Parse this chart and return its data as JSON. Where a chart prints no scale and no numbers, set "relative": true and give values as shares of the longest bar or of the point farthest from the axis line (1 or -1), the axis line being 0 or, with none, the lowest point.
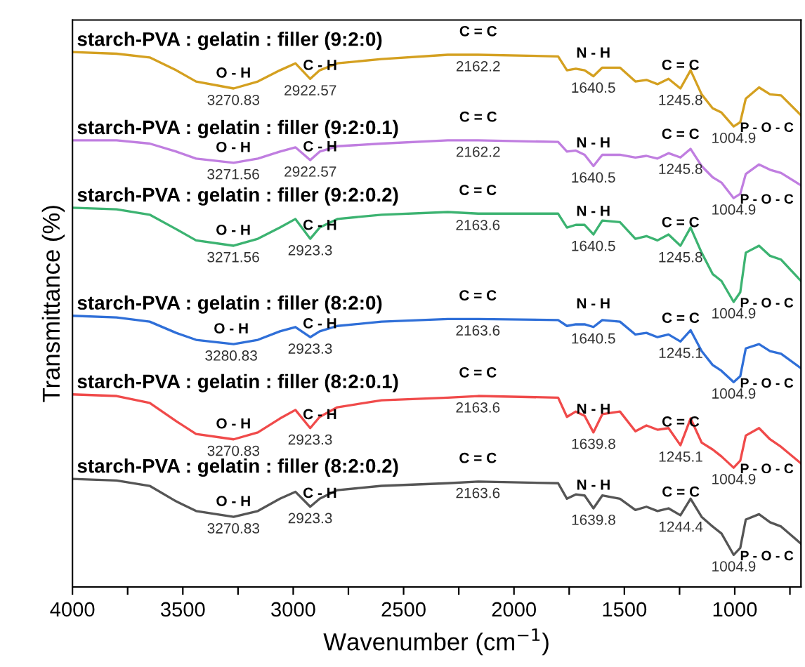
{
  "chart_data": {
    "type": "line",
    "relative": true,
    "xlabel": "Wavenumber (cm$^{−1}$)",
    "ylabel": "Transmittance (%)",
    "xlim": [
      4000,
      700
    ],
    "xticks": [
      4000,
      {
        "value": 3750,
        "label": null
      },
      3500,
      {
        "value": 3250,
        "label": null
      },
      3000,
      {
        "value": 2750,
        "label": null
      },
      2500,
      {
        "value": 2250,
        "label": null
      },
      2000,
      {
        "value": 1750,
        "label": null
      },
      1500,
      {
        "value": 1250,
        "label": null
      },
      1000,
      {
        "value": 750,
        "label": null
      }
    ],
    "x": [
      4000,
      3800,
      3650,
      3530,
      3440,
      3270,
      3160,
      3060,
      2990,
      2923,
      2880,
      2800,
      2600,
      2300,
      2162,
      1800,
      1760,
      1720,
      1680,
      1640,
      1600,
      1520,
      1450,
      1400,
      1350,
      1300,
      1246,
      1200,
      1150,
      1100,
      1060,
      1005,
      975,
      950,
      890,
      840,
      790,
      700
    ],
    "grid": false,
    "legend": false,
    "marker": "none",
    "line_style": "solid",
    "series": [
      {
        "name": "starch-PVA : gelatin : filler (9:2:0)",
        "color": "#d4a020",
        "values": [
          1.0,
          0.997,
          0.99,
          0.966,
          0.945,
          0.932,
          0.945,
          0.966,
          0.979,
          0.95,
          0.966,
          0.979,
          0.987,
          0.995,
          0.995,
          0.992,
          0.966,
          0.969,
          0.966,
          0.955,
          0.971,
          0.971,
          0.945,
          0.948,
          0.94,
          0.95,
          0.932,
          0.966,
          0.921,
          0.895,
          0.887,
          0.861,
          0.869,
          0.913,
          0.934,
          0.921,
          0.919,
          0.882
        ]
      },
      {
        "name": "starch-PVA : gelatin : filler (9:2:0.1)",
        "color": "#c07ee0",
        "values": [
          0.835,
          0.835,
          0.829,
          0.814,
          0.801,
          0.793,
          0.801,
          0.814,
          0.822,
          0.798,
          0.814,
          0.824,
          0.829,
          0.835,
          0.835,
          0.832,
          0.814,
          0.816,
          0.808,
          0.787,
          0.808,
          0.808,
          0.803,
          0.806,
          0.801,
          0.811,
          0.803,
          0.819,
          0.787,
          0.766,
          0.756,
          0.727,
          0.735,
          0.772,
          0.79,
          0.78,
          0.774,
          0.751
        ]
      },
      {
        "name": "starch-PVA : gelatin : filler (9:2:0.2)",
        "color": "#3cb371",
        "values": [
          0.709,
          0.706,
          0.696,
          0.669,
          0.648,
          0.638,
          0.651,
          0.672,
          0.688,
          0.651,
          0.672,
          0.688,
          0.696,
          0.701,
          0.698,
          0.698,
          0.672,
          0.677,
          0.677,
          0.659,
          0.685,
          0.682,
          0.651,
          0.656,
          0.648,
          0.659,
          0.638,
          0.672,
          0.625,
          0.585,
          0.572,
          0.533,
          0.551,
          0.625,
          0.638,
          0.619,
          0.612,
          0.572
        ]
      },
      {
        "name": "starch-PVA : gelatin : filler (8:2:0)",
        "color": "#2f6fd8",
        "values": [
          0.507,
          0.504,
          0.496,
          0.475,
          0.462,
          0.454,
          0.462,
          0.478,
          0.486,
          0.467,
          0.478,
          0.488,
          0.496,
          0.501,
          0.501,
          0.499,
          0.488,
          0.491,
          0.491,
          0.486,
          0.499,
          0.496,
          0.472,
          0.475,
          0.467,
          0.472,
          0.459,
          0.48,
          0.441,
          0.415,
          0.404,
          0.383,
          0.394,
          0.446,
          0.454,
          0.441,
          0.436,
          0.409
        ]
      },
      {
        "name": "starch-PVA : gelatin : filler (8:2:0.1)",
        "color": "#f04a4a",
        "values": [
          0.36,
          0.357,
          0.344,
          0.31,
          0.286,
          0.276,
          0.289,
          0.315,
          0.331,
          0.297,
          0.318,
          0.336,
          0.349,
          0.354,
          0.357,
          0.354,
          0.318,
          0.328,
          0.32,
          0.289,
          0.323,
          0.328,
          0.291,
          0.302,
          0.294,
          0.297,
          0.265,
          0.315,
          0.27,
          0.257,
          0.244,
          0.223,
          0.236,
          0.283,
          0.297,
          0.276,
          0.262,
          0.231
        ]
      },
      {
        "name": "starch-PVA : gelatin : filler (8:2:0.2)",
        "color": "#555555",
        "values": [
          0.202,
          0.199,
          0.189,
          0.16,
          0.142,
          0.131,
          0.142,
          0.165,
          0.178,
          0.15,
          0.165,
          0.181,
          0.189,
          0.194,
          0.197,
          0.194,
          0.165,
          0.173,
          0.171,
          0.147,
          0.171,
          0.165,
          0.144,
          0.15,
          0.142,
          0.147,
          0.134,
          0.165,
          0.131,
          0.113,
          0.1,
          0.06,
          0.073,
          0.126,
          0.136,
          0.121,
          0.113,
          0.081
        ]
      }
    ],
    "annotations": [
      {
        "text": "O - H",
        "x": 3270.83,
        "y": 0.932
      },
      {
        "text": "3270.83",
        "x": 3270.83,
        "y": 0.932
      },
      {
        "text": "C - H",
        "x": 2922.57,
        "y": 0.95
      },
      {
        "text": "2922.57",
        "x": 2922.57,
        "y": 0.95
      },
      {
        "text": "C = C",
        "x": 2162.2,
        "y": 0.995
      },
      {
        "text": "2162.2",
        "x": 2162.2,
        "y": 0.995
      },
      {
        "text": "N - H",
        "x": 1640.5,
        "y": 0.955
      },
      {
        "text": "1640.5",
        "x": 1640.5,
        "y": 0.955
      },
      {
        "text": "C = C",
        "x": 1245.8,
        "y": 0.932
      },
      {
        "text": "1245.8",
        "x": 1245.8,
        "y": 0.932
      },
      {
        "text": "1004.9",
        "x": 1004.9,
        "y": 0.861
      },
      {
        "text": "P - O - C",
        "x": 1004.9,
        "y": 0.861
      },
      {
        "text": "O - H",
        "x": 3271.56,
        "y": 0.793
      },
      {
        "text": "3271.56",
        "x": 3271.56,
        "y": 0.793
      },
      {
        "text": "C - H",
        "x": 2922.57,
        "y": 0.798
      },
      {
        "text": "2922.57",
        "x": 2922.57,
        "y": 0.798
      },
      {
        "text": "C = C",
        "x": 2162.2,
        "y": 0.835
      },
      {
        "text": "2162.2",
        "x": 2162.2,
        "y": 0.835
      },
      {
        "text": "N - H",
        "x": 1640.5,
        "y": 0.787
      },
      {
        "text": "1640.5",
        "x": 1640.5,
        "y": 0.787
      },
      {
        "text": "C = C",
        "x": 1245.8,
        "y": 0.803
      },
      {
        "text": "1245.8",
        "x": 1245.8,
        "y": 0.803
      },
      {
        "text": "1004.9",
        "x": 1004.9,
        "y": 0.727
      },
      {
        "text": "P - O - C",
        "x": 1004.9,
        "y": 0.727
      },
      {
        "text": "O - H",
        "x": 3271.56,
        "y": 0.638
      },
      {
        "text": "3271.56",
        "x": 3271.56,
        "y": 0.638
      },
      {
        "text": "C - H",
        "x": 2923.3,
        "y": 0.651
      },
      {
        "text": "2923.3",
        "x": 2923.3,
        "y": 0.651
      },
      {
        "text": "C = C",
        "x": 2163.6,
        "y": 0.698
      },
      {
        "text": "2163.6",
        "x": 2163.6,
        "y": 0.698
      },
      {
        "text": "N - H",
        "x": 1640.5,
        "y": 0.659
      },
      {
        "text": "1640.5",
        "x": 1640.5,
        "y": 0.659
      },
      {
        "text": "C = C",
        "x": 1245.8,
        "y": 0.638
      },
      {
        "text": "1245.8",
        "x": 1245.8,
        "y": 0.638
      },
      {
        "text": "1004.9",
        "x": 1004.9,
        "y": 0.533
      },
      {
        "text": "P - O - C",
        "x": 1004.9,
        "y": 0.533
      },
      {
        "text": "O - H",
        "x": 3280.83,
        "y": 0.454
      },
      {
        "text": "3280.83",
        "x": 3280.83,
        "y": 0.454
      },
      {
        "text": "C - H",
        "x": 2923.3,
        "y": 0.467
      },
      {
        "text": "2923.3",
        "x": 2923.3,
        "y": 0.467
      },
      {
        "text": "C = C",
        "x": 2163.6,
        "y": 0.501
      },
      {
        "text": "2163.6",
        "x": 2163.6,
        "y": 0.501
      },
      {
        "text": "N - H",
        "x": 1640.5,
        "y": 0.486
      },
      {
        "text": "1640.5",
        "x": 1640.5,
        "y": 0.486
      },
      {
        "text": "C = C",
        "x": 1245.1,
        "y": 0.459
      },
      {
        "text": "1245.1",
        "x": 1245.1,
        "y": 0.459
      },
      {
        "text": "1004.9",
        "x": 1004.9,
        "y": 0.383
      },
      {
        "text": "P - O - C",
        "x": 1004.9,
        "y": 0.383
      },
      {
        "text": "O - H",
        "x": 3270.83,
        "y": 0.276
      },
      {
        "text": "3270.83",
        "x": 3270.83,
        "y": 0.276
      },
      {
        "text": "C - H",
        "x": 2923.3,
        "y": 0.297
      },
      {
        "text": "2923.3",
        "x": 2923.3,
        "y": 0.297
      },
      {
        "text": "C = C",
        "x": 2163.6,
        "y": 0.357
      },
      {
        "text": "2163.6",
        "x": 2163.6,
        "y": 0.357
      },
      {
        "text": "N - H",
        "x": 1639.8,
        "y": 0.289
      },
      {
        "text": "1639.8",
        "x": 1639.8,
        "y": 0.289
      },
      {
        "text": "C = C",
        "x": 1245.1,
        "y": 0.265
      },
      {
        "text": "1245.1",
        "x": 1245.1,
        "y": 0.265
      },
      {
        "text": "1004.9",
        "x": 1004.9,
        "y": 0.223
      },
      {
        "text": "P - O - C",
        "x": 1004.9,
        "y": 0.223
      },
      {
        "text": "O - H",
        "x": 3270.83,
        "y": 0.131
      },
      {
        "text": "3270.83",
        "x": 3270.83,
        "y": 0.131
      },
      {
        "text": "C - H",
        "x": 2923.3,
        "y": 0.15
      },
      {
        "text": "2923.3",
        "x": 2923.3,
        "y": 0.15
      },
      {
        "text": "C = C",
        "x": 2163.6,
        "y": 0.197
      },
      {
        "text": "2163.6",
        "x": 2163.6,
        "y": 0.197
      },
      {
        "text": "N - H",
        "x": 1639.8,
        "y": 0.147
      },
      {
        "text": "1639.8",
        "x": 1639.8,
        "y": 0.147
      },
      {
        "text": "C = C",
        "x": 1244.4,
        "y": 0.134
      },
      {
        "text": "1244.4",
        "x": 1244.4,
        "y": 0.134
      },
      {
        "text": "1004.9",
        "x": 1004.9,
        "y": 0.06
      },
      {
        "text": "P - O - C",
        "x": 1004.9,
        "y": 0.06
      }
    ]
  }
}
